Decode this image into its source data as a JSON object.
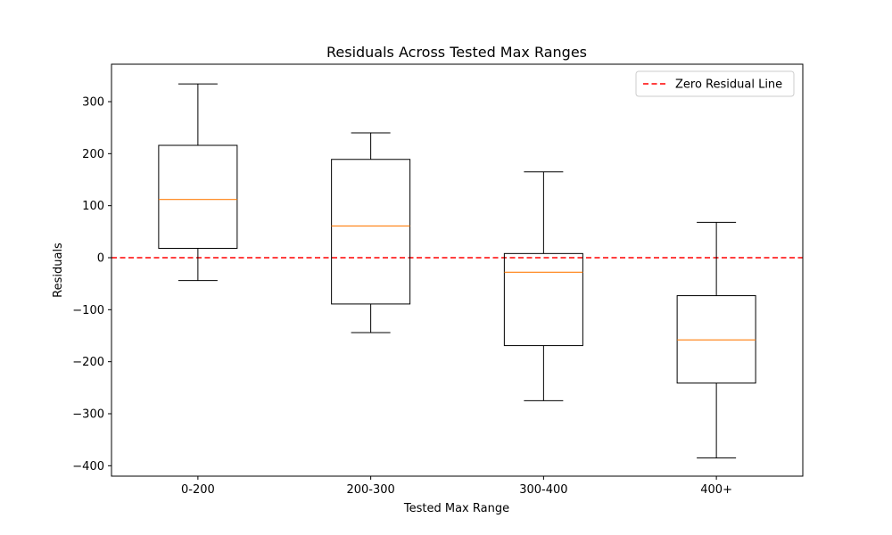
{
  "chart_data": {
    "type": "box",
    "title": "Residuals Across Tested Max Ranges",
    "xlabel": "Tested Max Range",
    "ylabel": "Residuals",
    "categories": [
      "0-200",
      "200-300",
      "300-400",
      "400+"
    ],
    "boxes": [
      {
        "category": "0-200",
        "whisker_low": -44,
        "q1": 18,
        "median": 112,
        "q3": 216,
        "whisker_high": 334
      },
      {
        "category": "200-300",
        "whisker_low": -144,
        "q1": -89,
        "median": 61,
        "q3": 189,
        "whisker_high": 240
      },
      {
        "category": "300-400",
        "whisker_low": -275,
        "q1": -169,
        "median": -28,
        "q3": 8,
        "whisker_high": 165
      },
      {
        "category": "400+",
        "whisker_low": -385,
        "q1": -241,
        "median": -158,
        "q3": -73,
        "whisker_high": 68
      }
    ],
    "reference_line": {
      "y": 0,
      "label": "Zero Residual Line",
      "color": "#ff0000",
      "style": "dashed"
    },
    "yticks": [
      300,
      200,
      100,
      0,
      -100,
      -200,
      -300,
      -400
    ],
    "ylim": [
      -420,
      372
    ],
    "box_edge_color": "#000000",
    "median_color": "#ff7f0e",
    "legend_position": "top-right",
    "grid": false
  }
}
